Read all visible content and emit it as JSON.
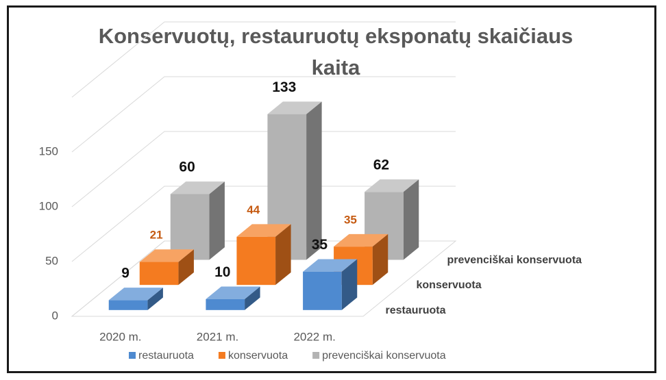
{
  "chart_data": {
    "type": "bar3d",
    "title": "Konservuotų, restauruotų eksponatų skaičiaus kaita",
    "categories": [
      "2020 m.",
      "2021 m.",
      "2022 m."
    ],
    "series": [
      {
        "name": "restauruota",
        "color": "#4e8ad0",
        "values": [
          9,
          10,
          35
        ]
      },
      {
        "name": "konservuota",
        "color": "#f47b20",
        "values": [
          21,
          44,
          35
        ]
      },
      {
        "name": "prevenciškai konservuota",
        "color": "#b3b3b3",
        "values": [
          60,
          133,
          62
        ]
      }
    ],
    "ylim": [
      0,
      200
    ],
    "yticks": [
      0,
      50,
      100,
      150
    ],
    "grid": true,
    "legend": "bottom"
  }
}
